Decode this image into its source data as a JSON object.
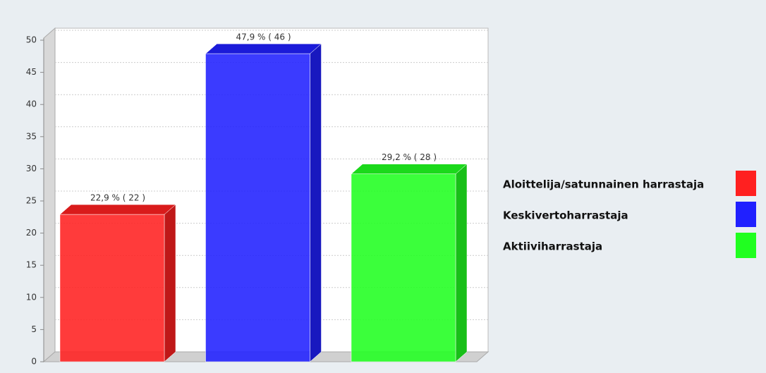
{
  "chart_data": {
    "type": "bar3d",
    "categories": [
      "Aloittelija/satunnainen harrastaja",
      "Keskivertoharrastaja",
      "Aktiiviharrastaja"
    ],
    "values": [
      22.9,
      47.9,
      29.2
    ],
    "value_labels": [
      "22,9 % ( 22 )",
      "47,9 % ( 46 )",
      "29,2 % ( 28 )"
    ],
    "colors": [
      "#ff2020",
      "#2020ff",
      "#20ff20"
    ],
    "ylim": [
      0,
      50
    ],
    "yticks": [
      0,
      5,
      10,
      15,
      20,
      25,
      30,
      35,
      40,
      45,
      50
    ],
    "grid": true,
    "legend": "right"
  }
}
